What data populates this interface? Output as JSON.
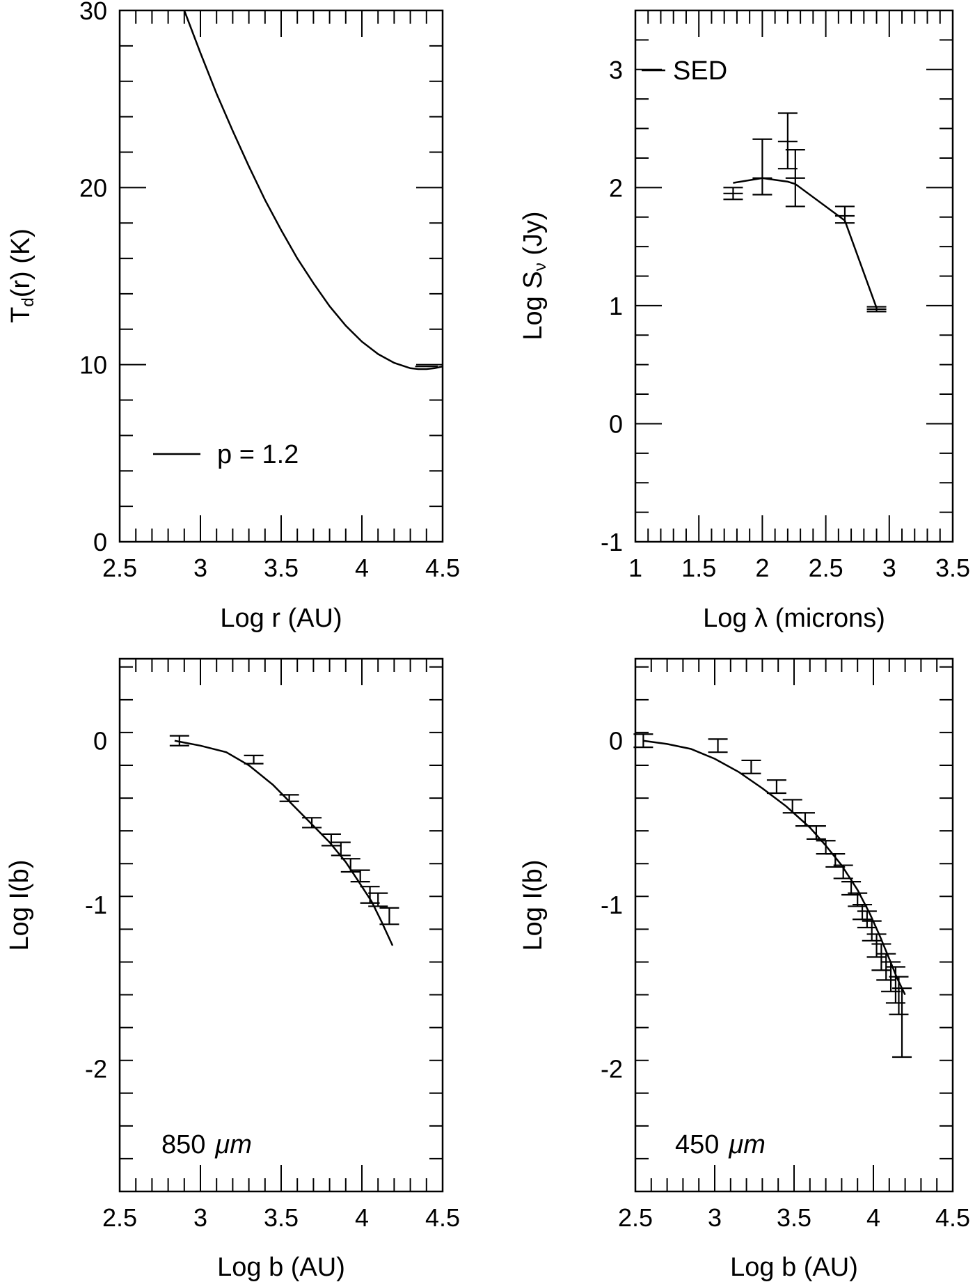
{
  "chart_data": [
    {
      "id": "td",
      "type": "line",
      "xlabel": "Log r (AU)",
      "ylabel_main": "T",
      "ylabel_sub": "d",
      "ylabel_rest": "(r)  (K)",
      "xlim": [
        2.5,
        4.5
      ],
      "ylim": [
        0,
        30
      ],
      "xticks": [
        2.5,
        3,
        3.5,
        4,
        4.5
      ],
      "xtick_labels": [
        "2.5",
        "3",
        "3.5",
        "4",
        "4.5"
      ],
      "yticks": [
        0,
        10,
        20,
        30
      ],
      "ytick_labels": [
        "0",
        "10",
        "20",
        "30"
      ],
      "x_minor": 0.1,
      "y_minor": 2,
      "legend": "p = 1.2",
      "series": [
        {
          "name": "p = 1.2",
          "x": [
            2.9,
            3.0,
            3.1,
            3.2,
            3.3,
            3.4,
            3.5,
            3.6,
            3.7,
            3.8,
            3.9,
            4.0,
            4.1,
            4.2,
            4.3,
            4.35,
            4.4,
            4.45,
            4.5
          ],
          "y": [
            30.0,
            27.6,
            25.3,
            23.2,
            21.2,
            19.3,
            17.6,
            16.0,
            14.6,
            13.3,
            12.2,
            11.3,
            10.6,
            10.1,
            9.8,
            9.75,
            9.75,
            9.8,
            9.9
          ]
        }
      ],
      "errorbars": [
        {
          "x": 4.4,
          "y": 9.9,
          "yerr": 0.0,
          "xhalf": 0.07
        }
      ]
    },
    {
      "id": "sed",
      "type": "line",
      "xlabel_pre": "Log  ",
      "xlabel_sym": "λ",
      "xlabel_post": "  (microns)",
      "ylabel_main": "Log  S",
      "ylabel_sub": "ν",
      "ylabel_rest": "  (Jy)",
      "xlim": [
        1,
        3.5
      ],
      "ylim": [
        -1,
        3.5
      ],
      "xticks": [
        1,
        1.5,
        2,
        2.5,
        3,
        3.5
      ],
      "xtick_labels": [
        "1",
        "1.5",
        "2",
        "2.5",
        "3",
        "3.5"
      ],
      "yticks": [
        -1,
        0,
        1,
        2,
        3
      ],
      "ytick_labels": [
        "-1",
        "0",
        "1",
        "2",
        "3"
      ],
      "x_minor": 0.1,
      "y_minor": 0.25,
      "legend": "SED",
      "series": [
        {
          "name": "SED",
          "x": [
            1.77,
            2.0,
            2.2,
            2.26,
            2.65,
            2.9
          ],
          "y": [
            2.04,
            2.08,
            2.05,
            2.03,
            1.72,
            0.98
          ]
        }
      ],
      "errorbars": [
        {
          "x": 1.77,
          "y": 1.95,
          "lo": 1.9,
          "hi": 2.0
        },
        {
          "x": 2.0,
          "y": 2.08,
          "lo": 1.94,
          "hi": 2.41
        },
        {
          "x": 2.2,
          "y": 2.39,
          "lo": 2.16,
          "hi": 2.63
        },
        {
          "x": 2.26,
          "y": 2.08,
          "lo": 1.84,
          "hi": 2.32
        },
        {
          "x": 2.65,
          "y": 1.76,
          "lo": 1.7,
          "hi": 1.84
        },
        {
          "x": 2.9,
          "y": 0.97,
          "lo": 0.95,
          "hi": 0.99
        }
      ]
    },
    {
      "id": "i850",
      "type": "line",
      "xlabel": "Log b (AU)",
      "ylabel": "Log I(b)",
      "xlim": [
        2.5,
        4.5
      ],
      "ylim": [
        -2.75,
        0.5
      ],
      "xticks": [
        2.5,
        3,
        3.5,
        4,
        4.5
      ],
      "xtick_labels": [
        "2.5",
        "3",
        "3.5",
        "4",
        "4.5"
      ],
      "yticks": [
        -2,
        -1,
        0
      ],
      "ytick_labels": [
        "-2",
        "-1",
        "0"
      ],
      "x_minor": 0.1,
      "y_minor": 0.2,
      "annotation_value": "850",
      "annotation_unit": "μm",
      "series": [
        {
          "name": "model",
          "x": [
            2.84,
            3.0,
            3.16,
            3.3,
            3.45,
            3.56,
            3.68,
            3.8,
            3.9,
            3.98,
            4.06,
            4.12,
            4.19
          ],
          "y": [
            0.0,
            -0.03,
            -0.07,
            -0.15,
            -0.27,
            -0.38,
            -0.5,
            -0.62,
            -0.74,
            -0.86,
            -0.98,
            -1.1,
            -1.25
          ]
        }
      ],
      "errorbars": [
        {
          "x": 2.87,
          "lo": -0.03,
          "hi": 0.03
        },
        {
          "x": 3.33,
          "lo": -0.14,
          "hi": -0.09
        },
        {
          "x": 3.55,
          "lo": -0.37,
          "hi": -0.33
        },
        {
          "x": 3.69,
          "lo": -0.53,
          "hi": -0.47
        },
        {
          "x": 3.81,
          "lo": -0.64,
          "hi": -0.57
        },
        {
          "x": 3.87,
          "lo": -0.7,
          "hi": -0.62
        },
        {
          "x": 3.93,
          "lo": -0.8,
          "hi": -0.72
        },
        {
          "x": 3.99,
          "lo": -0.86,
          "hi": -0.79
        },
        {
          "x": 4.05,
          "lo": -0.99,
          "hi": -0.89
        },
        {
          "x": 4.1,
          "lo": -1.01,
          "hi": -0.93
        },
        {
          "x": 4.17,
          "lo": -1.12,
          "hi": -1.02
        }
      ]
    },
    {
      "id": "i450",
      "type": "line",
      "xlabel": "Log b (AU)",
      "ylabel": "Log I(b)",
      "xlim": [
        2.5,
        4.5
      ],
      "ylim": [
        -2.75,
        0.5
      ],
      "xticks": [
        2.5,
        3,
        3.5,
        4,
        4.5
      ],
      "xtick_labels": [
        "2.5",
        "3",
        "3.5",
        "4",
        "4.5"
      ],
      "yticks": [
        -2,
        -1,
        0
      ],
      "ytick_labels": [
        "-2",
        "-1",
        "0"
      ],
      "x_minor": 0.1,
      "y_minor": 0.2,
      "annotation_value": "450",
      "annotation_unit": "μm",
      "series": [
        {
          "name": "model",
          "x": [
            2.55,
            2.7,
            2.85,
            3.0,
            3.15,
            3.3,
            3.45,
            3.6,
            3.7,
            3.8,
            3.9,
            3.98,
            4.04,
            4.1,
            4.15,
            4.2
          ],
          "y": [
            0.0,
            -0.02,
            -0.05,
            -0.11,
            -0.19,
            -0.29,
            -0.4,
            -0.53,
            -0.64,
            -0.76,
            -0.91,
            -1.06,
            -1.19,
            -1.33,
            -1.45,
            -1.55
          ]
        }
      ],
      "errorbars": [
        {
          "x": 2.55,
          "lo": -0.04,
          "hi": 0.04
        },
        {
          "x": 3.02,
          "lo": -0.07,
          "hi": 0.01
        },
        {
          "x": 3.23,
          "lo": -0.2,
          "hi": -0.12
        },
        {
          "x": 3.39,
          "lo": -0.32,
          "hi": -0.24
        },
        {
          "x": 3.49,
          "lo": -0.44,
          "hi": -0.36
        },
        {
          "x": 3.57,
          "lo": -0.52,
          "hi": -0.44
        },
        {
          "x": 3.64,
          "lo": -0.6,
          "hi": -0.52
        },
        {
          "x": 3.7,
          "lo": -0.69,
          "hi": -0.61
        },
        {
          "x": 3.76,
          "lo": -0.77,
          "hi": -0.69
        },
        {
          "x": 3.81,
          "lo": -0.84,
          "hi": -0.76
        },
        {
          "x": 3.86,
          "lo": -0.94,
          "hi": -0.86
        },
        {
          "x": 3.9,
          "lo": -1.01,
          "hi": -0.93
        },
        {
          "x": 3.93,
          "lo": -1.09,
          "hi": -1.0
        },
        {
          "x": 3.96,
          "lo": -1.14,
          "hi": -1.04
        },
        {
          "x": 3.99,
          "lo": -1.22,
          "hi": -1.1
        },
        {
          "x": 4.02,
          "lo": -1.32,
          "hi": -1.18
        },
        {
          "x": 4.05,
          "lo": -1.4,
          "hi": -1.24
        },
        {
          "x": 4.08,
          "lo": -1.46,
          "hi": -1.3
        },
        {
          "x": 4.11,
          "lo": -1.53,
          "hi": -1.35
        },
        {
          "x": 4.14,
          "lo": -1.6,
          "hi": -1.38
        },
        {
          "x": 4.16,
          "lo": -1.67,
          "hi": -1.44
        },
        {
          "x": 4.18,
          "lo": -1.93,
          "hi": -1.51
        }
      ]
    }
  ]
}
